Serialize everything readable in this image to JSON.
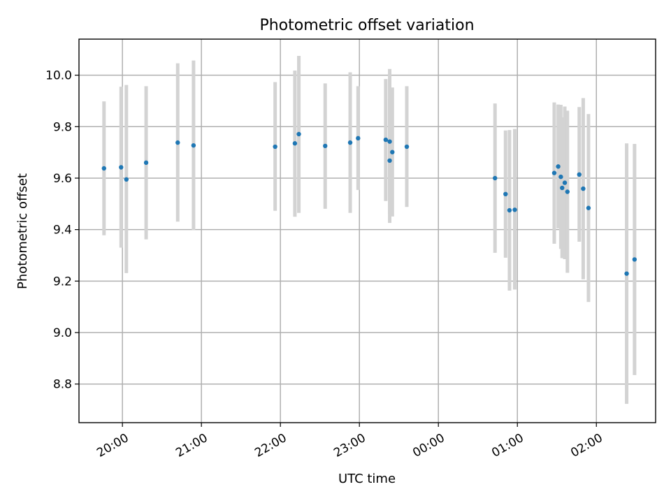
{
  "chart_data": {
    "type": "scatter",
    "title": "Photometric offset variation",
    "xlabel": "UTC time",
    "ylabel": "Photometric offset",
    "x_unit": "UTC time, 19:00 on day 1 through 03:00 on day 2",
    "xlim": [
      "19:27",
      "02:45"
    ],
    "ylim": [
      8.65,
      10.14
    ],
    "grid": true,
    "x_ticks": [
      "20:00",
      "21:00",
      "22:00",
      "23:00",
      "00:00",
      "01:00",
      "02:00"
    ],
    "y_ticks": [
      8.8,
      9.0,
      9.2,
      9.4,
      9.6,
      9.8,
      10.0
    ],
    "marker_color": "#1f77b4",
    "errorbar_color": "#d3d3d3",
    "series": [
      {
        "points": [
          {
            "x": "19:46",
            "y": 9.638,
            "lo": 9.378,
            "hi": 9.898
          },
          {
            "x": "19:59",
            "y": 9.642,
            "lo": 9.33,
            "hi": 9.955
          },
          {
            "x": "20:03",
            "y": 9.595,
            "lo": 9.231,
            "hi": 9.962
          },
          {
            "x": "20:18",
            "y": 9.66,
            "lo": 9.362,
            "hi": 9.957
          },
          {
            "x": "20:42",
            "y": 9.738,
            "lo": 9.431,
            "hi": 10.046
          },
          {
            "x": "20:54",
            "y": 9.727,
            "lo": 9.398,
            "hi": 10.057
          },
          {
            "x": "21:56",
            "y": 9.722,
            "lo": 9.473,
            "hi": 9.973
          },
          {
            "x": "22:11",
            "y": 9.735,
            "lo": 9.45,
            "hi": 10.018
          },
          {
            "x": "22:14",
            "y": 9.771,
            "lo": 9.465,
            "hi": 10.075
          },
          {
            "x": "22:34",
            "y": 9.725,
            "lo": 9.481,
            "hi": 9.968
          },
          {
            "x": "22:53",
            "y": 9.738,
            "lo": 9.465,
            "hi": 10.011
          },
          {
            "x": "22:59",
            "y": 9.755,
            "lo": 9.554,
            "hi": 9.957
          },
          {
            "x": "23:20",
            "y": 9.749,
            "lo": 9.511,
            "hi": 9.985
          },
          {
            "x": "23:23",
            "y": 9.742,
            "lo": 9.463,
            "hi": 10.024
          },
          {
            "x": "23:23",
            "y": 9.668,
            "lo": 9.426,
            "hi": 9.91
          },
          {
            "x": "23:25",
            "y": 9.701,
            "lo": 9.451,
            "hi": 9.952
          },
          {
            "x": "23:36",
            "y": 9.722,
            "lo": 9.488,
            "hi": 9.957
          },
          {
            "x": "00:43",
            "y": 9.6,
            "lo": 9.31,
            "hi": 9.89
          },
          {
            "x": "00:51",
            "y": 9.538,
            "lo": 9.291,
            "hi": 9.785
          },
          {
            "x": "00:54",
            "y": 9.475,
            "lo": 9.163,
            "hi": 9.787
          },
          {
            "x": "00:58",
            "y": 9.477,
            "lo": 9.167,
            "hi": 9.791
          },
          {
            "x": "01:28",
            "y": 9.62,
            "lo": 9.345,
            "hi": 9.894
          },
          {
            "x": "01:31",
            "y": 9.645,
            "lo": 9.405,
            "hi": 9.886
          },
          {
            "x": "01:33",
            "y": 9.605,
            "lo": 9.325,
            "hi": 9.885
          },
          {
            "x": "01:34",
            "y": 9.562,
            "lo": 9.289,
            "hi": 9.836
          },
          {
            "x": "01:36",
            "y": 9.582,
            "lo": 9.285,
            "hi": 9.878
          },
          {
            "x": "01:38",
            "y": 9.547,
            "lo": 9.232,
            "hi": 9.862
          },
          {
            "x": "01:47",
            "y": 9.614,
            "lo": 9.353,
            "hi": 9.876
          },
          {
            "x": "01:50",
            "y": 9.559,
            "lo": 9.207,
            "hi": 9.911
          },
          {
            "x": "01:54",
            "y": 9.484,
            "lo": 9.119,
            "hi": 9.849
          },
          {
            "x": "02:23",
            "y": 9.229,
            "lo": 8.723,
            "hi": 9.735
          },
          {
            "x": "02:29",
            "y": 9.284,
            "lo": 8.835,
            "hi": 9.733
          }
        ]
      }
    ]
  }
}
